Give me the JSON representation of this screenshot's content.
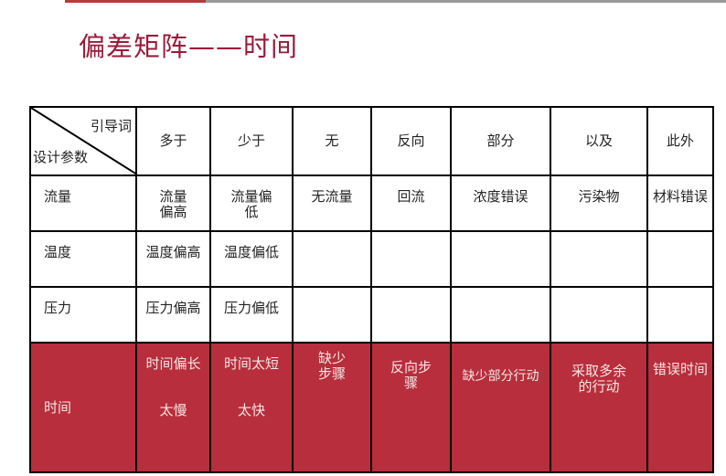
{
  "title": "偏差矩阵——时间",
  "colors": {
    "accent": "#9b1b3a",
    "highlight_row": "#b82e3c"
  },
  "table": {
    "corner": {
      "top": "引导词",
      "bottom": "设计参数"
    },
    "headers": [
      "多于",
      "少于",
      "无",
      "反向",
      "部分",
      "以及",
      "此外"
    ],
    "rows": [
      {
        "param": "流量",
        "cells": [
          "流量\n偏高",
          "流量偏\n低",
          "无流量",
          "回流",
          "浓度错误",
          "污染物",
          "材料错误"
        ]
      },
      {
        "param": "温度",
        "cells": [
          "温度偏高",
          "温度偏低",
          "",
          "",
          "",
          "",
          ""
        ]
      },
      {
        "param": "压力",
        "cells": [
          "压力偏高",
          "压力偏低",
          "",
          "",
          "",
          "",
          ""
        ]
      },
      {
        "param": "时间",
        "cells": [
          "时间偏长",
          "时间太短",
          "缺少\n步骤",
          "反向步\n骤",
          "缺少部分行动",
          "采取多余\n的行动",
          "错误时间"
        ],
        "extra": [
          "太慢",
          "太快"
        ]
      }
    ]
  }
}
